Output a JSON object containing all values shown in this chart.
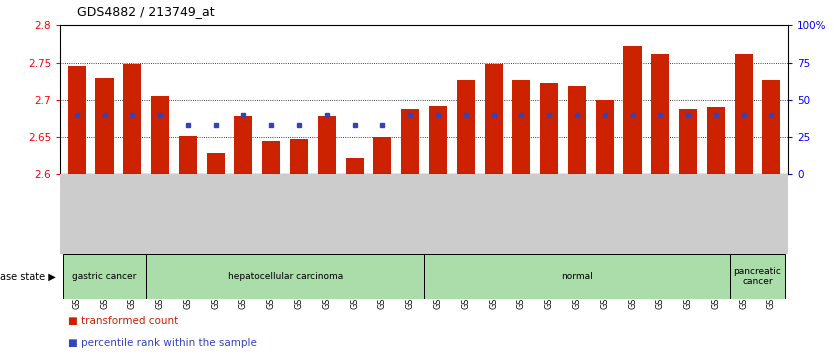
{
  "title": "GDS4882 / 213749_at",
  "samples": [
    "GSM1200291",
    "GSM1200292",
    "GSM1200293",
    "GSM1200294",
    "GSM1200295",
    "GSM1200296",
    "GSM1200297",
    "GSM1200298",
    "GSM1200299",
    "GSM1200300",
    "GSM1200301",
    "GSM1200302",
    "GSM1200303",
    "GSM1200304",
    "GSM1200305",
    "GSM1200306",
    "GSM1200307",
    "GSM1200308",
    "GSM1200309",
    "GSM1200310",
    "GSM1200311",
    "GSM1200312",
    "GSM1200313",
    "GSM1200314",
    "GSM1200315",
    "GSM1200316"
  ],
  "transformed_count": [
    2.745,
    2.73,
    2.748,
    2.705,
    2.652,
    2.628,
    2.678,
    2.645,
    2.648,
    2.678,
    2.622,
    2.65,
    2.688,
    2.692,
    2.726,
    2.748,
    2.726,
    2.723,
    2.718,
    2.7,
    2.773,
    2.762,
    2.688,
    2.69,
    2.762,
    2.726
  ],
  "percentile_rank": [
    40,
    40,
    40,
    40,
    33,
    33,
    40,
    33,
    33,
    40,
    33,
    33,
    40,
    40,
    40,
    40,
    40,
    40,
    40,
    40,
    40,
    40,
    40,
    40,
    40,
    40
  ],
  "bar_color": "#cc2200",
  "dot_color": "#3344bb",
  "ylim_left": [
    2.6,
    2.8
  ],
  "ylim_right": [
    0,
    100
  ],
  "yticks_left": [
    2.6,
    2.65,
    2.7,
    2.75,
    2.8
  ],
  "yticks_right": [
    0,
    25,
    50,
    75,
    100
  ],
  "ytick_labels_right": [
    "0",
    "25",
    "50",
    "75",
    "100%"
  ],
  "group_defs": [
    [
      0,
      2,
      "gastric cancer"
    ],
    [
      3,
      12,
      "hepatocellular carcinoma"
    ],
    [
      13,
      23,
      "normal"
    ],
    [
      24,
      25,
      "pancreatic\ncancer"
    ]
  ],
  "group_color_light": "#aaddaa",
  "group_color_dark": "#77cc77",
  "xtick_bg": "#cccccc"
}
